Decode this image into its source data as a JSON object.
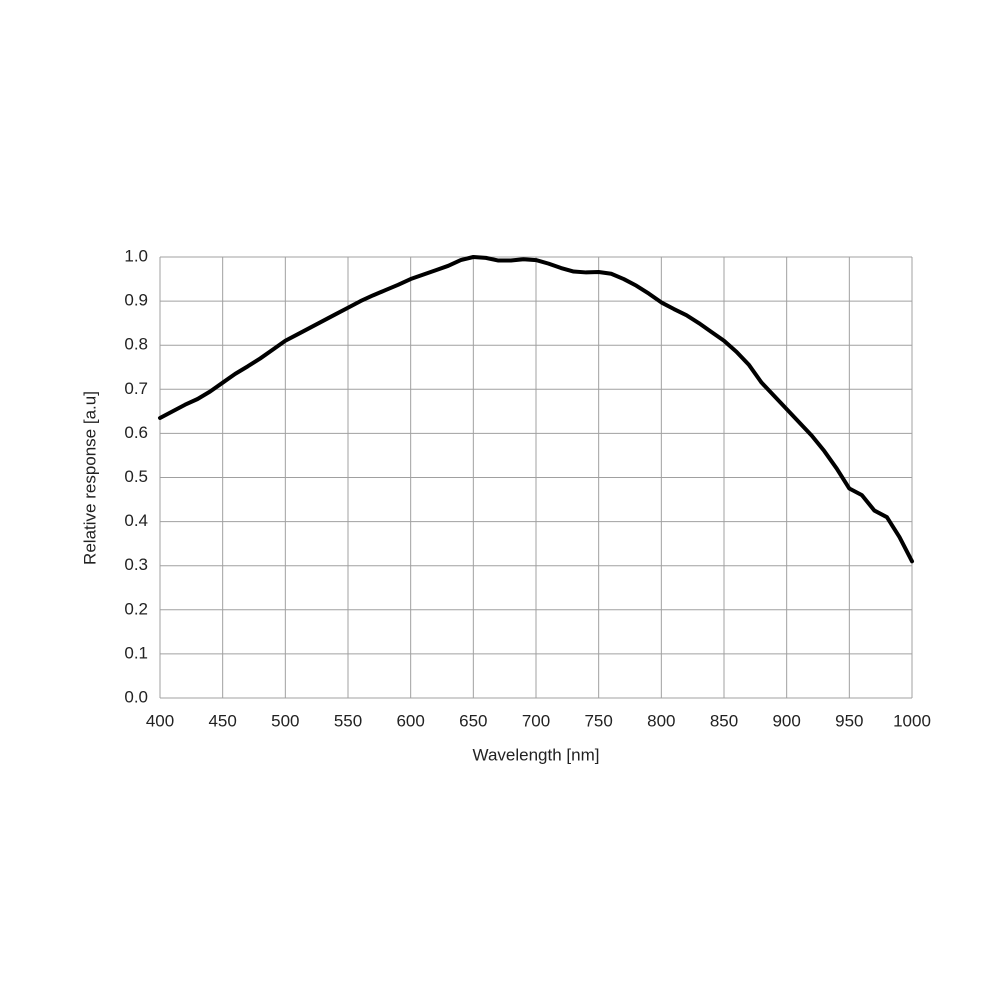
{
  "chart_data": {
    "type": "line",
    "x_label": "Wavelength [nm]",
    "y_label": "Relative response [a.u]",
    "x": [
      400,
      410,
      420,
      430,
      440,
      450,
      460,
      470,
      480,
      490,
      500,
      510,
      520,
      530,
      540,
      550,
      560,
      570,
      580,
      590,
      600,
      610,
      620,
      630,
      640,
      650,
      660,
      670,
      680,
      690,
      700,
      710,
      720,
      730,
      740,
      750,
      760,
      770,
      780,
      790,
      800,
      810,
      820,
      830,
      840,
      850,
      860,
      870,
      880,
      890,
      900,
      910,
      920,
      930,
      940,
      950,
      960,
      970,
      980,
      990,
      1000
    ],
    "series": [
      {
        "name": "Relative response",
        "color": "#000000",
        "values": [
          0.635,
          0.65,
          0.665,
          0.678,
          0.695,
          0.715,
          0.735,
          0.752,
          0.77,
          0.79,
          0.81,
          0.825,
          0.84,
          0.855,
          0.87,
          0.885,
          0.9,
          0.913,
          0.925,
          0.937,
          0.95,
          0.96,
          0.97,
          0.98,
          0.993,
          1.0,
          0.998,
          0.992,
          0.992,
          0.995,
          0.993,
          0.985,
          0.975,
          0.967,
          0.965,
          0.966,
          0.962,
          0.95,
          0.935,
          0.917,
          0.897,
          0.882,
          0.868,
          0.85,
          0.83,
          0.81,
          0.785,
          0.755,
          0.715,
          0.685,
          0.655,
          0.625,
          0.595,
          0.56,
          0.52,
          0.475,
          0.46,
          0.425,
          0.41,
          0.365,
          0.31
        ]
      }
    ],
    "xlim": [
      400,
      1000
    ],
    "xticks": [
      400,
      450,
      500,
      550,
      600,
      650,
      700,
      750,
      800,
      850,
      900,
      950,
      1000
    ],
    "ylim": [
      0,
      1
    ],
    "yticks": [
      {
        "value": 0,
        "label": "0.0"
      },
      0.1,
      0.2,
      0.3,
      0.4,
      0.5,
      0.6,
      0.7,
      0.8,
      0.9,
      {
        "value": 1,
        "label": "1.0"
      }
    ],
    "grid": true
  }
}
